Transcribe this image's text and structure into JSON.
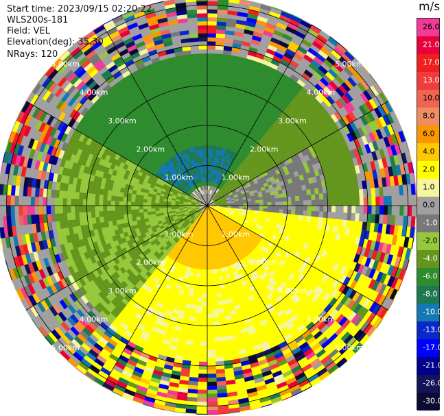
{
  "header": {
    "start_time": "Start time: 2023/09/15 02:20:22",
    "instrument": "WLS200s-181",
    "field": "Field: VEL",
    "elevation": "Elevation(deg): 35.30",
    "nrays": "NRays: 120"
  },
  "colorbar": {
    "units": "m/s",
    "ticks": [
      "26.0",
      "21.0",
      "17.0",
      "13.0",
      "10.0",
      "8.0",
      "6.0",
      "4.0",
      "2.0",
      "1.0",
      "0.0",
      "-1.0",
      "-2.0",
      "-4.0",
      "-6.0",
      "-8.0",
      "-10.0",
      "-13.0",
      "-17.0",
      "-21.0",
      "-26.0",
      "-30.0"
    ],
    "colors": [
      "#f03c96",
      "#e8003c",
      "#f01e1e",
      "#f03c3c",
      "#f06450",
      "#f08c64",
      "#fa9600",
      "#ffc800",
      "#ffff00",
      "#f5f5a0",
      "#a0a0a0",
      "#787878",
      "#96c83c",
      "#64961e",
      "#2e8b2e",
      "#1e7850",
      "#1478b4",
      "#0a28c8",
      "#0000ff",
      "#00008c",
      "#14145a",
      "#0a0a32"
    ]
  },
  "chart_data": {
    "type": "heatmap",
    "subtype": "radar PPI velocity scan",
    "field": "VEL",
    "units": "m/s",
    "nrays": 120,
    "elevation_deg": 35.3,
    "range_rings_km": [
      1.0,
      2.0,
      3.0,
      4.0,
      5.0
    ],
    "range_ring_labels": [
      "1.00km",
      "2.00km",
      "3.00km",
      "4.00km",
      "5.00km"
    ],
    "azimuth_spokes_deg": [
      0,
      30,
      60,
      90,
      120,
      150,
      180,
      210,
      240,
      270,
      300,
      330
    ],
    "max_range_km": 6.0,
    "velocity_pattern": [
      {
        "azimuth_from": 290,
        "azimuth_to": 40,
        "range_from_km": 0.5,
        "range_to_km": 3.8,
        "velocity_ms": -5.0
      },
      {
        "azimuth_from": 220,
        "azimuth_to": 300,
        "range_from_km": 0.2,
        "range_to_km": 3.8,
        "velocity_ms": -2.0
      },
      {
        "azimuth_from": 40,
        "azimuth_to": 90,
        "range_from_km": 0.2,
        "range_to_km": 3.8,
        "velocity_ms": -3.0
      },
      {
        "azimuth_from": 60,
        "azimuth_to": 95,
        "range_from_km": 0.5,
        "range_to_km": 3.0,
        "velocity_ms": -0.5
      },
      {
        "azimuth_from": 95,
        "azimuth_to": 220,
        "range_from_km": 0.0,
        "range_to_km": 3.9,
        "velocity_ms": 2.5
      },
      {
        "azimuth_from": 120,
        "azimuth_to": 220,
        "range_from_km": 0.0,
        "range_to_km": 1.6,
        "velocity_ms": 5.0
      },
      {
        "azimuth_from": 300,
        "azimuth_to": 30,
        "range_from_km": 0.6,
        "range_to_km": 1.5,
        "velocity_ms": -8.0
      }
    ],
    "noise_beyond_km": 3.9
  }
}
